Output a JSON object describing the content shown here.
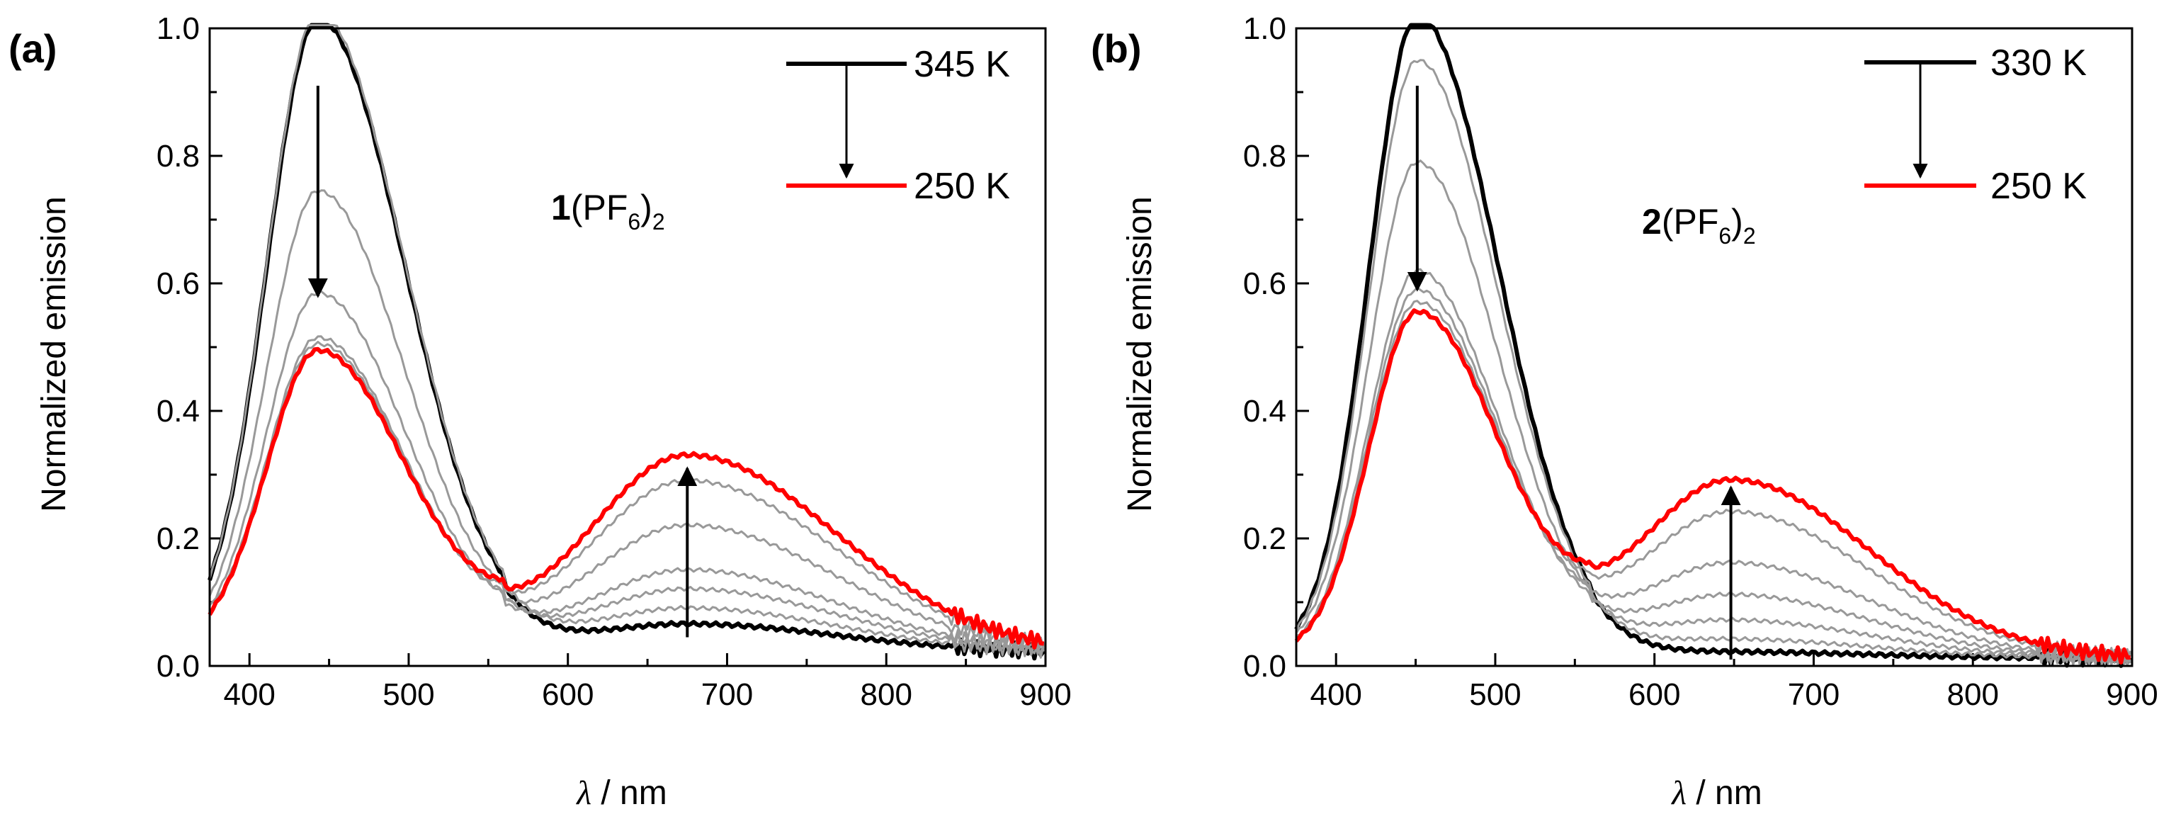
{
  "chart_data": [
    {
      "panel_label": "(a)",
      "type": "line",
      "xlabel_symbol": "λ",
      "xlabel_unit": " / nm",
      "ylabel": "Normalized emission",
      "xlim": [
        375,
        900
      ],
      "ylim": [
        0,
        1.0
      ],
      "xticks": [
        "400",
        "500",
        "600",
        "700",
        "800",
        "900"
      ],
      "yticks": [
        "0.0",
        "0.2",
        "0.4",
        "0.6",
        "0.8",
        "1.0"
      ],
      "compound": {
        "number": "1",
        "text": "(PF",
        "sub1": "6",
        "close": ")",
        "sub2": "2"
      },
      "legend": {
        "top_label": "345 K",
        "bottom_label": "250 K",
        "top_color": "#000000",
        "bottom_color": "#ff0000"
      },
      "arrows": [
        {
          "x": 443,
          "from": 0.91,
          "to": 0.58
        },
        {
          "x": 675,
          "from": 0.045,
          "to": 0.31
        }
      ],
      "series": [
        {
          "name": "345 K",
          "color": "#000000",
          "p1": 0.98,
          "p2": 0.045
        },
        {
          "name": "intermediate",
          "color": "#999999",
          "p1": 0.99,
          "p2": 0.07
        },
        {
          "name": "intermediate",
          "color": "#999999",
          "p1": 0.71,
          "p2": 0.1
        },
        {
          "name": "intermediate",
          "color": "#999999",
          "p1": 0.55,
          "p2": 0.13
        },
        {
          "name": "intermediate",
          "color": "#999999",
          "p1": 0.48,
          "p2": 0.2
        },
        {
          "name": "intermediate",
          "color": "#999999",
          "p1": 0.47,
          "p2": 0.27
        },
        {
          "name": "250 K",
          "color": "#ff0000",
          "p1": 0.46,
          "p2": 0.31
        }
      ]
    },
    {
      "panel_label": "(b)",
      "type": "line",
      "xlabel_symbol": "λ",
      "xlabel_unit": " / nm",
      "ylabel": "Normalized emission",
      "xlim": [
        375,
        900
      ],
      "ylim": [
        0,
        1.0
      ],
      "xticks": [
        "400",
        "500",
        "600",
        "700",
        "800",
        "900"
      ],
      "yticks": [
        "0.0",
        "0.2",
        "0.4",
        "0.6",
        "0.8",
        "1.0"
      ],
      "compound": {
        "number": "2",
        "text": "(PF",
        "sub1": "6",
        "close": ")",
        "sub2": "2"
      },
      "legend": {
        "top_label": "330 K",
        "bottom_label": "250 K",
        "top_color": "#000000",
        "bottom_color": "#ff0000"
      },
      "arrows": [
        {
          "x": 451,
          "from": 0.91,
          "to": 0.59
        },
        {
          "x": 648,
          "from": 0.01,
          "to": 0.28
        }
      ],
      "series": [
        {
          "name": "330 K",
          "color": "#000000",
          "p1": 1.0,
          "p2": 0.01
        },
        {
          "name": "intermediate",
          "color": "#999999",
          "p1": 0.93,
          "p2": 0.03
        },
        {
          "name": "intermediate",
          "color": "#999999",
          "p1": 0.77,
          "p2": 0.06
        },
        {
          "name": "intermediate",
          "color": "#999999",
          "p1": 0.6,
          "p2": 0.1
        },
        {
          "name": "intermediate",
          "color": "#999999",
          "p1": 0.57,
          "p2": 0.15
        },
        {
          "name": "intermediate",
          "color": "#999999",
          "p1": 0.55,
          "p2": 0.23
        },
        {
          "name": "250 K",
          "color": "#ff0000",
          "p1": 0.535,
          "p2": 0.28
        }
      ]
    }
  ]
}
